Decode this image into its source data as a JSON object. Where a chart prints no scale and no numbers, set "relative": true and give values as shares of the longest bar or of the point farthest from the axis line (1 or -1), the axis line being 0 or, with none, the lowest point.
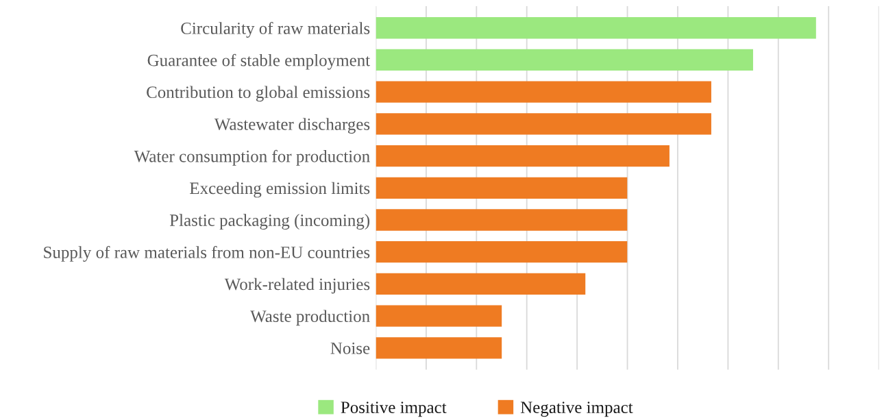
{
  "chart_data": {
    "type": "bar",
    "orientation": "horizontal",
    "stacked": true,
    "relative": true,
    "categories": [
      "Circularity of raw materials",
      "Guarantee of stable employment",
      "Contribution to global emissions",
      "Wastewater discharges",
      "Water consumption for production",
      "Exceeding emission limits",
      "Plastic packaging (incoming)",
      "Supply of raw materials from non-EU countries",
      "Work-related injuries",
      "Waste production",
      "Noise"
    ],
    "series": [
      {
        "name": "Positive impact",
        "color": "#9be87f",
        "values": [
          1,
          0.857,
          null,
          null,
          null,
          null,
          null,
          null,
          null,
          null,
          null
        ]
      },
      {
        "name": "Negative impact",
        "color": "#ef7b22",
        "values": [
          null,
          null,
          0.762,
          0.762,
          0.667,
          0.571,
          0.571,
          0.571,
          0.476,
          0.286,
          0.286
        ]
      }
    ],
    "grid": "x",
    "legend": "bottom"
  }
}
